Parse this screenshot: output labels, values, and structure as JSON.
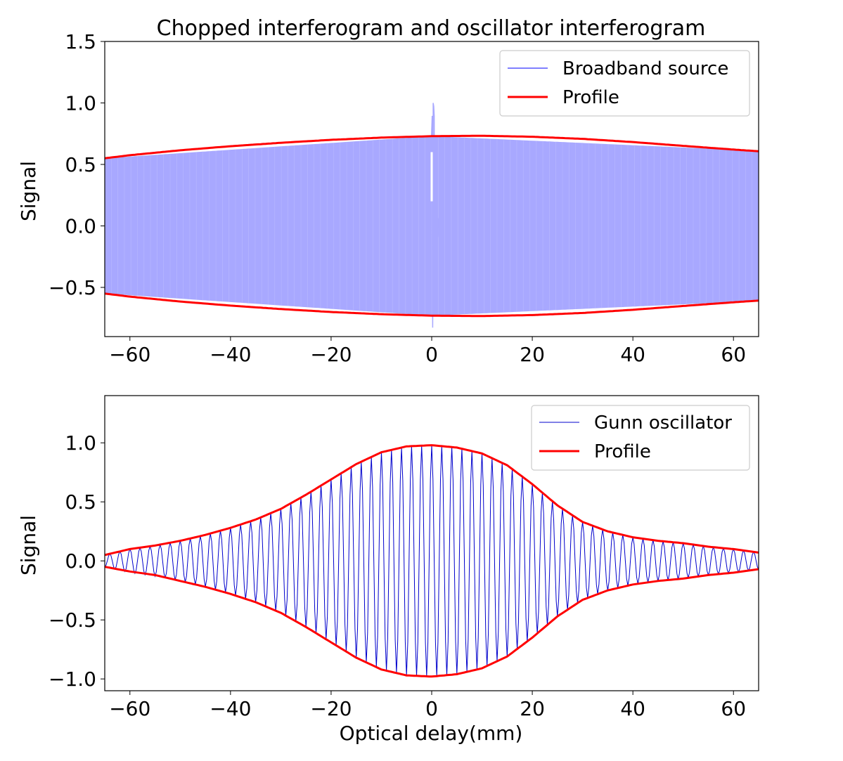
{
  "colors": {
    "broadband": "#0000ff",
    "broadband_fill": "#a8a8ff",
    "gunn": "#0000cc",
    "profile": "#ff0000",
    "legend_border": "#cccccc",
    "axis": "#000000"
  },
  "chart_data": [
    {
      "type": "line",
      "title": "Chopped interferogram and oscillator interferogram",
      "xlabel": "",
      "ylabel": "Signal",
      "xlim": [
        -65,
        65
      ],
      "ylim": [
        -0.9,
        1.5
      ],
      "xticks": [
        -60,
        -40,
        -20,
        0,
        20,
        40,
        60
      ],
      "xtick_labels": [
        "−60",
        "−40",
        "−20",
        "0",
        "20",
        "40",
        "60"
      ],
      "yticks": [
        -0.5,
        0.0,
        0.5,
        1.0,
        1.5
      ],
      "ytick_labels": [
        "−0.5",
        "0.0",
        "0.5",
        "1.0",
        "1.5"
      ],
      "legend_position": "top-right",
      "series": [
        {
          "name": "Broadband source",
          "kind": "filled-oscillation",
          "x": [
            -65,
            0,
            65
          ],
          "envelope": [
            0.55,
            0.73,
            0.61
          ],
          "center_burst": {
            "x": 0.3,
            "peak": 1.0,
            "trough": -0.85
          }
        },
        {
          "name": "Profile",
          "kind": "envelope",
          "x": [
            -65,
            -60,
            -50,
            -40,
            -30,
            -20,
            -10,
            0,
            10,
            20,
            30,
            40,
            50,
            60,
            65
          ],
          "upper": [
            0.55,
            0.575,
            0.615,
            0.648,
            0.676,
            0.7,
            0.718,
            0.73,
            0.733,
            0.725,
            0.708,
            0.682,
            0.651,
            0.621,
            0.607
          ],
          "lower": [
            -0.55,
            -0.575,
            -0.615,
            -0.648,
            -0.676,
            -0.7,
            -0.718,
            -0.73,
            -0.733,
            -0.725,
            -0.708,
            -0.682,
            -0.651,
            -0.621,
            -0.607
          ]
        }
      ]
    },
    {
      "type": "line",
      "title": "",
      "xlabel": "Optical delay(mm)",
      "ylabel": "Signal",
      "xlim": [
        -65,
        65
      ],
      "ylim": [
        -1.1,
        1.4
      ],
      "xticks": [
        -60,
        -40,
        -20,
        0,
        20,
        40,
        60
      ],
      "xtick_labels": [
        "−60",
        "−40",
        "−20",
        "0",
        "20",
        "40",
        "60"
      ],
      "yticks": [
        -1.0,
        -0.5,
        0.0,
        0.5,
        1.0
      ],
      "ytick_labels": [
        "−1.0",
        "−0.5",
        "0.0",
        "0.5",
        "1.0"
      ],
      "legend_position": "top-right",
      "series": [
        {
          "name": "Gunn oscillator",
          "kind": "oscillation",
          "period": 2.0
        },
        {
          "name": "Profile",
          "kind": "envelope",
          "x": [
            -65,
            -60,
            -55,
            -50,
            -45,
            -40,
            -35,
            -30,
            -25,
            -20,
            -15,
            -10,
            -5,
            0,
            5,
            10,
            15,
            20,
            25,
            30,
            35,
            40,
            45,
            50,
            55,
            60,
            65
          ],
          "upper": [
            0.05,
            0.1,
            0.13,
            0.17,
            0.22,
            0.28,
            0.35,
            0.44,
            0.56,
            0.69,
            0.82,
            0.92,
            0.97,
            0.98,
            0.96,
            0.91,
            0.81,
            0.65,
            0.47,
            0.33,
            0.25,
            0.2,
            0.17,
            0.15,
            0.12,
            0.1,
            0.07
          ],
          "lower": [
            -0.05,
            -0.09,
            -0.12,
            -0.17,
            -0.22,
            -0.28,
            -0.35,
            -0.44,
            -0.56,
            -0.69,
            -0.82,
            -0.92,
            -0.97,
            -0.98,
            -0.96,
            -0.91,
            -0.81,
            -0.65,
            -0.47,
            -0.33,
            -0.25,
            -0.2,
            -0.17,
            -0.15,
            -0.12,
            -0.1,
            -0.07
          ]
        }
      ]
    }
  ]
}
